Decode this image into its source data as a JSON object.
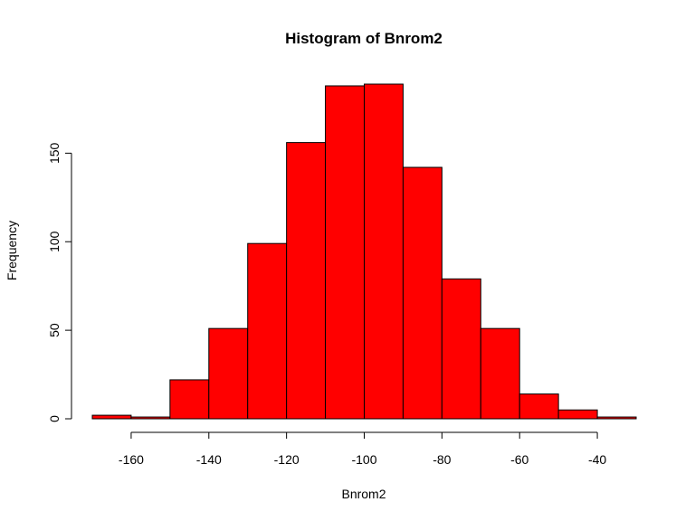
{
  "chart_data": {
    "type": "bar",
    "title": "Histogram of Bnrom2",
    "xlabel": "Bnrom2",
    "ylabel": "Frequency",
    "bins": [
      {
        "start": -170,
        "end": -160,
        "count": 2
      },
      {
        "start": -160,
        "end": -150,
        "count": 1
      },
      {
        "start": -150,
        "end": -140,
        "count": 22
      },
      {
        "start": -140,
        "end": -130,
        "count": 51
      },
      {
        "start": -130,
        "end": -120,
        "count": 99
      },
      {
        "start": -120,
        "end": -110,
        "count": 156
      },
      {
        "start": -110,
        "end": -100,
        "count": 188
      },
      {
        "start": -100,
        "end": -90,
        "count": 189
      },
      {
        "start": -90,
        "end": -80,
        "count": 142
      },
      {
        "start": -80,
        "end": -70,
        "count": 79
      },
      {
        "start": -70,
        "end": -60,
        "count": 51
      },
      {
        "start": -60,
        "end": -50,
        "count": 14
      },
      {
        "start": -50,
        "end": -40,
        "count": 5
      },
      {
        "start": -40,
        "end": -30,
        "count": 1
      }
    ],
    "xlim": [
      -170,
      -30
    ],
    "ylim": [
      0,
      189
    ],
    "x_ticks": [
      -160,
      -140,
      -120,
      -100,
      -80,
      -60,
      -40
    ],
    "x_tick_labels": [
      "-160",
      "-140",
      "-120",
      "-100",
      "-80",
      "-60",
      "-40"
    ],
    "y_ticks": [
      0,
      50,
      100,
      150
    ],
    "y_tick_labels": [
      "0",
      "50",
      "100",
      "150"
    ],
    "bar_color": "#ff0000",
    "border_color": "#000000",
    "grid": false,
    "legend": "none"
  }
}
